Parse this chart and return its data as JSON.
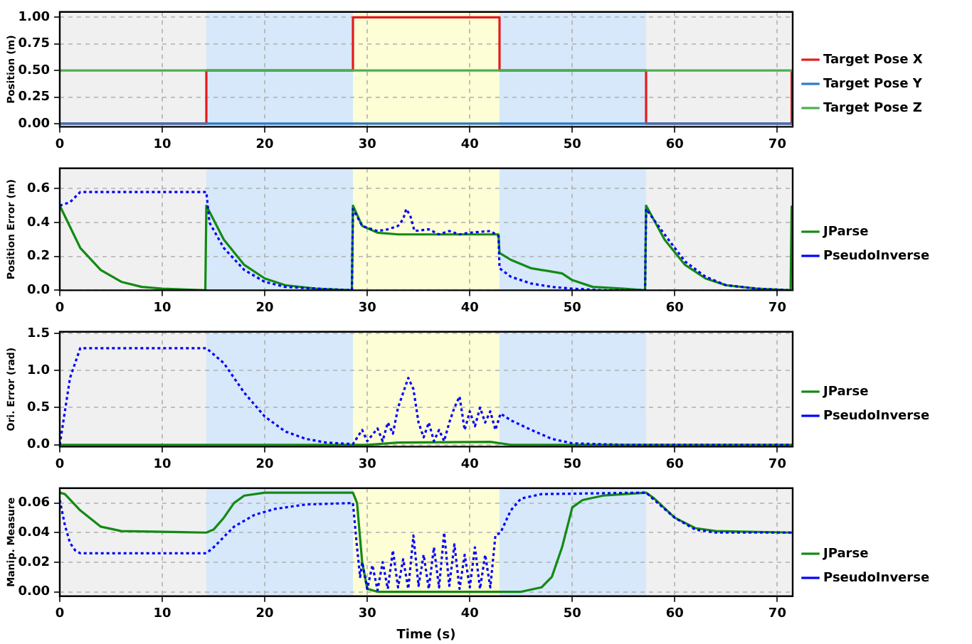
{
  "chart_data": [
    {
      "type": "line",
      "ylabel": "Position (m)",
      "xlim": [
        0,
        71.5
      ],
      "xticks": [
        0,
        10,
        20,
        30,
        40,
        50,
        60,
        70
      ],
      "ylim": [
        -0.03,
        1.05
      ],
      "yticks": [
        {
          "value": 0,
          "label": "0.00"
        },
        {
          "value": 0.25,
          "label": "0.25"
        },
        {
          "value": 0.5,
          "label": "0.50"
        },
        {
          "value": 0.75,
          "label": "0.75"
        },
        {
          "value": 1,
          "label": "1.00"
        }
      ],
      "grid": true,
      "legend": "right",
      "line_style": "solid",
      "bands": [
        {
          "axis": "x",
          "from": 0,
          "to": 14.3,
          "color": "#f0f0f0"
        },
        {
          "axis": "x",
          "from": 14.3,
          "to": 28.6,
          "color": "#d6e8fa"
        },
        {
          "axis": "x",
          "from": 28.6,
          "to": 42.9,
          "color": "#fdfdd6"
        },
        {
          "axis": "x",
          "from": 42.9,
          "to": 57.2,
          "color": "#d6e8fa"
        },
        {
          "axis": "x",
          "from": 57.2,
          "to": 71.5,
          "color": "#f0f0f0"
        }
      ],
      "series": [
        {
          "name": "Target Pose X",
          "color": "#e41a1c",
          "x": [
            0,
            14.3,
            14.3,
            28.6,
            28.6,
            42.9,
            42.9,
            57.2,
            57.2,
            71.4,
            71.4
          ],
          "values": [
            0,
            0,
            0.5,
            0.5,
            1,
            1,
            0.5,
            0.5,
            0,
            0,
            0.5
          ]
        },
        {
          "name": "Target Pose Y",
          "color": "#2a7bc8",
          "x": [
            0,
            71.5
          ],
          "values": [
            0,
            0
          ]
        },
        {
          "name": "Target Pose Z",
          "color": "#4caf50",
          "x": [
            0,
            71.5
          ],
          "values": [
            0.5,
            0.5
          ]
        }
      ]
    },
    {
      "type": "line",
      "ylabel": "Position Error (m)",
      "xlim": [
        0,
        71.5
      ],
      "xticks": [
        0,
        10,
        20,
        30,
        40,
        50,
        60,
        70
      ],
      "ylim": [
        0,
        0.72
      ],
      "yticks": [
        {
          "value": 0,
          "label": "0.0"
        },
        {
          "value": 0.2,
          "label": "0.2"
        },
        {
          "value": 0.4,
          "label": "0.4"
        },
        {
          "value": 0.6,
          "label": "0.6"
        }
      ],
      "grid": true,
      "legend": "right",
      "bands": [
        {
          "axis": "x",
          "from": 0,
          "to": 14.3,
          "color": "#f0f0f0"
        },
        {
          "axis": "x",
          "from": 14.3,
          "to": 28.6,
          "color": "#d6e8fa"
        },
        {
          "axis": "x",
          "from": 28.6,
          "to": 42.9,
          "color": "#fdfdd6"
        },
        {
          "axis": "x",
          "from": 42.9,
          "to": 57.2,
          "color": "#d6e8fa"
        },
        {
          "axis": "x",
          "from": 57.2,
          "to": 71.5,
          "color": "#f0f0f0"
        }
      ],
      "series": [
        {
          "name": "JParse",
          "color": "#138a13",
          "line_style": "solid",
          "x": [
            0,
            2,
            4,
            6,
            8,
            10,
            14.2,
            14.3,
            16,
            18,
            20,
            22,
            25,
            28.5,
            28.6,
            29.5,
            31,
            33,
            42.8,
            42.9,
            44,
            46,
            48,
            49,
            50,
            52,
            55,
            57.1,
            57.2,
            59,
            61,
            63,
            65,
            68,
            71.3,
            71.4
          ],
          "values": [
            0.5,
            0.25,
            0.12,
            0.05,
            0.02,
            0.01,
            0,
            0.5,
            0.3,
            0.15,
            0.07,
            0.03,
            0.01,
            0,
            0.5,
            0.38,
            0.34,
            0.33,
            0.33,
            0.22,
            0.18,
            0.13,
            0.11,
            0.1,
            0.06,
            0.02,
            0.01,
            0,
            0.5,
            0.3,
            0.15,
            0.07,
            0.03,
            0.01,
            0,
            0.5
          ]
        },
        {
          "name": "PseudoInverse",
          "color": "#0000ff",
          "line_style": "dotted",
          "x": [
            0,
            1,
            2,
            14.2,
            14.3,
            14.6,
            16,
            18,
            20,
            22,
            25,
            28.5,
            28.6,
            29.5,
            30,
            31,
            32,
            33,
            33.5,
            33.8,
            34.2,
            34.6,
            36,
            37,
            38,
            39,
            40,
            42,
            42.8,
            42.9,
            44,
            46,
            48,
            50,
            53,
            57.1,
            57.2,
            59,
            61,
            63,
            65,
            68,
            71.3
          ],
          "values": [
            0.5,
            0.52,
            0.58,
            0.58,
            0.58,
            0.4,
            0.25,
            0.12,
            0.05,
            0.02,
            0.01,
            0,
            0.48,
            0.38,
            0.37,
            0.35,
            0.36,
            0.38,
            0.42,
            0.48,
            0.44,
            0.35,
            0.36,
            0.33,
            0.35,
            0.33,
            0.34,
            0.35,
            0.32,
            0.13,
            0.08,
            0.04,
            0.02,
            0.01,
            0,
            0,
            0.48,
            0.33,
            0.17,
            0.08,
            0.03,
            0.01,
            0
          ]
        }
      ]
    },
    {
      "type": "line",
      "ylabel": "Ori. Error (rad)",
      "xlim": [
        0,
        71.5
      ],
      "xticks": [
        0,
        10,
        20,
        30,
        40,
        50,
        60,
        70
      ],
      "ylim": [
        -0.025,
        1.52
      ],
      "yticks": [
        {
          "value": 0,
          "label": "0.0"
        },
        {
          "value": 0.5,
          "label": "0.5"
        },
        {
          "value": 1,
          "label": "1.0"
        },
        {
          "value": 1.5,
          "label": "1.5"
        }
      ],
      "grid": true,
      "legend": "right",
      "bands": [
        {
          "axis": "x",
          "from": 0,
          "to": 14.3,
          "color": "#f0f0f0"
        },
        {
          "axis": "x",
          "from": 14.3,
          "to": 28.6,
          "color": "#d6e8fa"
        },
        {
          "axis": "x",
          "from": 28.6,
          "to": 42.9,
          "color": "#fdfdd6"
        },
        {
          "axis": "x",
          "from": 42.9,
          "to": 57.2,
          "color": "#d6e8fa"
        },
        {
          "axis": "x",
          "from": 57.2,
          "to": 71.5,
          "color": "#f0f0f0"
        }
      ],
      "series": [
        {
          "name": "JParse",
          "color": "#138a13",
          "line_style": "solid",
          "x": [
            0,
            30,
            33,
            42,
            44,
            71.5
          ],
          "values": [
            0,
            0,
            0.03,
            0.04,
            0,
            0
          ]
        },
        {
          "name": "PseudoInverse",
          "color": "#0000ff",
          "line_style": "dotted",
          "x": [
            0,
            1,
            2,
            14.3,
            16,
            18,
            20,
            22,
            24,
            26,
            28.6,
            29.5,
            30,
            31,
            31.5,
            32,
            32.5,
            33,
            33.5,
            34,
            34.5,
            35,
            35.5,
            36,
            36.5,
            37,
            37.5,
            38,
            38.5,
            39,
            39.5,
            40,
            40.5,
            41,
            41.5,
            42,
            42.5,
            43,
            44,
            46,
            48,
            50,
            55,
            71.5
          ],
          "values": [
            0,
            0.9,
            1.3,
            1.3,
            1.1,
            0.7,
            0.38,
            0.18,
            0.08,
            0.03,
            0.01,
            0.2,
            0.05,
            0.22,
            0.05,
            0.3,
            0.15,
            0.5,
            0.7,
            0.9,
            0.75,
            0.3,
            0.1,
            0.3,
            0.05,
            0.2,
            0.05,
            0.3,
            0.5,
            0.65,
            0.2,
            0.45,
            0.25,
            0.5,
            0.3,
            0.45,
            0.2,
            0.42,
            0.33,
            0.2,
            0.08,
            0.02,
            0,
            0
          ]
        }
      ]
    },
    {
      "type": "line",
      "xlabel": "Time (s)",
      "ylabel": "Manip. Measure",
      "xlim": [
        0,
        71.5
      ],
      "xticks": [
        0,
        10,
        20,
        30,
        40,
        50,
        60,
        70
      ],
      "ylim": [
        -0.003,
        0.07
      ],
      "yticks": [
        {
          "value": 0,
          "label": "0.00"
        },
        {
          "value": 0.02,
          "label": "0.02"
        },
        {
          "value": 0.04,
          "label": "0.04"
        },
        {
          "value": 0.06,
          "label": "0.06"
        }
      ],
      "grid": true,
      "legend": "right",
      "bands": [
        {
          "axis": "x",
          "from": 0,
          "to": 14.3,
          "color": "#f0f0f0"
        },
        {
          "axis": "x",
          "from": 14.3,
          "to": 28.6,
          "color": "#d6e8fa"
        },
        {
          "axis": "x",
          "from": 28.6,
          "to": 42.9,
          "color": "#fdfdd6"
        },
        {
          "axis": "x",
          "from": 42.9,
          "to": 57.2,
          "color": "#d6e8fa"
        },
        {
          "axis": "x",
          "from": 57.2,
          "to": 71.5,
          "color": "#f0f0f0"
        }
      ],
      "series": [
        {
          "name": "JParse",
          "color": "#138a13",
          "line_style": "solid",
          "x": [
            0,
            0.5,
            2,
            4,
            6,
            14.3,
            15,
            16,
            17,
            18,
            20,
            28.6,
            29,
            29.5,
            30,
            31,
            43,
            45,
            47,
            48,
            49,
            50,
            51,
            53,
            57.2,
            58,
            60,
            62,
            64,
            71.5
          ],
          "values": [
            0.067,
            0.066,
            0.055,
            0.044,
            0.041,
            0.04,
            0.042,
            0.05,
            0.06,
            0.065,
            0.067,
            0.067,
            0.06,
            0.02,
            0.002,
            0,
            0,
            0,
            0.003,
            0.01,
            0.03,
            0.057,
            0.062,
            0.065,
            0.067,
            0.063,
            0.05,
            0.043,
            0.041,
            0.04
          ]
        },
        {
          "name": "PseudoInverse",
          "color": "#0000ff",
          "line_style": "dotted",
          "x": [
            0,
            0.5,
            1,
            1.5,
            2,
            14.3,
            15,
            17,
            19,
            21,
            24,
            28.6,
            29,
            29.3,
            29.5,
            30,
            30.5,
            31,
            31.5,
            32,
            32.5,
            33,
            33.5,
            34,
            34.5,
            35,
            35.5,
            36,
            36.5,
            37,
            37.5,
            38,
            38.5,
            39,
            39.5,
            40,
            40.5,
            41,
            41.5,
            42,
            42.5,
            43,
            44,
            45,
            47,
            57.2,
            58,
            60,
            62,
            64,
            71.5
          ],
          "values": [
            0.062,
            0.045,
            0.033,
            0.028,
            0.026,
            0.026,
            0.03,
            0.044,
            0.052,
            0.056,
            0.059,
            0.06,
            0.03,
            0.01,
            0.02,
            0.002,
            0.018,
            0.001,
            0.02,
            0.002,
            0.028,
            0.003,
            0.022,
            0.002,
            0.038,
            0.004,
            0.025,
            0.002,
            0.03,
            0.003,
            0.04,
            0.004,
            0.032,
            0.002,
            0.025,
            0.003,
            0.03,
            0.002,
            0.025,
            0.003,
            0.038,
            0.04,
            0.055,
            0.063,
            0.066,
            0.067,
            0.062,
            0.05,
            0.042,
            0.04,
            0.04
          ]
        }
      ]
    }
  ]
}
